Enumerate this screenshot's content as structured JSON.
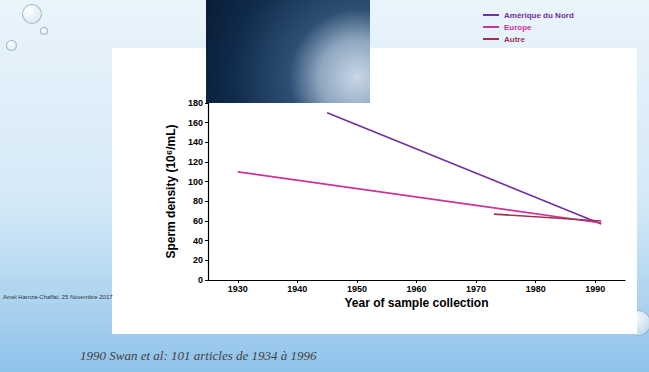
{
  "chart_data": {
    "type": "line",
    "x_label": "Year of sample collection",
    "y_label": "Sperm density (10⁶/mL)",
    "xlim": [
      1925,
      1995
    ],
    "xticks": [
      1930,
      1940,
      1950,
      1960,
      1970,
      1980,
      1990
    ],
    "ylim": [
      0,
      180
    ],
    "yticks": [
      0,
      20,
      40,
      60,
      80,
      100,
      120,
      140,
      160,
      180
    ],
    "grid": false,
    "legend": "top-right",
    "series": [
      {
        "name": "Amérique du Nord",
        "color": "#7030a0",
        "x": [
          1945,
          1991
        ],
        "values": [
          170,
          57
        ]
      },
      {
        "name": "Europe",
        "color": "#cc3399",
        "x": [
          1930,
          1991
        ],
        "values": [
          110,
          58
        ]
      },
      {
        "name": "Autre",
        "color": "#993355",
        "x": [
          1973,
          1991
        ],
        "values": [
          67,
          60
        ]
      }
    ],
    "annotations": [
      "Amel Hamza-Chaffai, 25 Novembre 2017",
      "1990 Swan et al: 101 articles de 1934 à 1996"
    ]
  }
}
